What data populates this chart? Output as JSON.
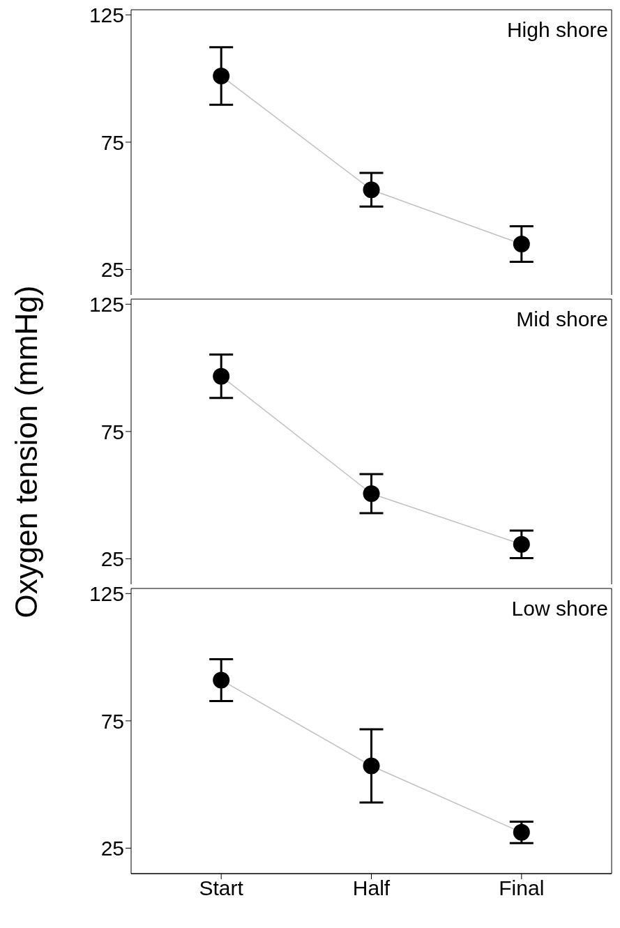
{
  "chart_data": [
    {
      "type": "line",
      "title": "High shore",
      "categories": [
        null,
        null,
        null
      ],
      "ylabel": "Oxygen tension (mmHg)",
      "ylim": [
        15,
        127
      ],
      "yticks": [
        25,
        75,
        125
      ],
      "tick_labels": "y",
      "grid": false,
      "legend": false,
      "marker": "circle",
      "series": [
        {
          "color": "#000000",
          "values": [
            101,
            56.3,
            35
          ],
          "errors": [
            11.3,
            6.6,
            7
          ]
        }
      ]
    },
    {
      "type": "line",
      "title": "Mid shore",
      "categories": [
        null,
        null,
        null
      ],
      "ylim": [
        15,
        127
      ],
      "yticks": [
        25,
        75,
        125
      ],
      "tick_labels": "y",
      "grid": false,
      "legend": false,
      "marker": "circle",
      "series": [
        {
          "color": "#000000",
          "values": [
            96.7,
            50.6,
            30.7
          ],
          "errors": [
            8.5,
            7.7,
            5.4
          ]
        }
      ]
    },
    {
      "type": "line",
      "title": "Low shore",
      "categories": [
        "Start",
        "Half",
        "Final"
      ],
      "ylim": [
        15,
        127
      ],
      "yticks": [
        25,
        75,
        125
      ],
      "grid": false,
      "legend": false,
      "marker": "circle",
      "series": [
        {
          "color": "#000000",
          "values": [
            91,
            57.3,
            31.2
          ],
          "errors": [
            8.2,
            14.4,
            4.2
          ]
        }
      ]
    }
  ]
}
